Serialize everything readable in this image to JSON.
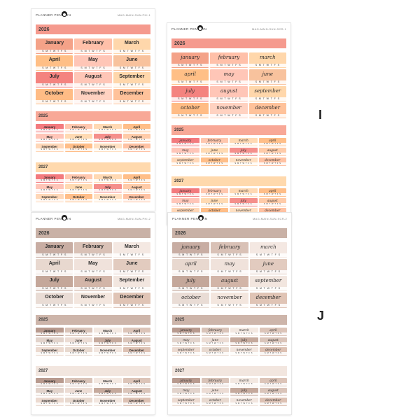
{
  "brand": "PLANNER PENGUIN",
  "weekdays": "S M T W T F S",
  "labels": {
    "first": "I",
    "second": "J"
  },
  "months_plain": [
    "January",
    "February",
    "March",
    "April",
    "May",
    "June",
    "July",
    "August",
    "September",
    "October",
    "November",
    "December"
  ],
  "months_script": [
    "january",
    "february",
    "march",
    "april",
    "may",
    "june",
    "july",
    "august",
    "september",
    "october",
    "november",
    "december"
  ],
  "sheets": [
    {
      "id": "top-left",
      "code": "MAG-MAIN-SUN-PKI-1",
      "style": "plain",
      "years": [
        "2026",
        "2025",
        "2027"
      ],
      "colors": {
        "bar": "#f59a8e",
        "bar2": "#f8a897",
        "bar3": "#ffd9ad",
        "big": [
          "#f4a288",
          "#ffc0a9",
          "#ffd7ab",
          "#ffbf86",
          "#ffc6b7",
          "#f8c29d",
          "#f4837f",
          "#ffc6b7",
          "#ffd7ab",
          "#ffbc85",
          "#ffd2c1",
          "#ffc29a"
        ],
        "small": [
          "#f37a7e",
          "#ffc7ae",
          "#ffd9b3",
          "#ffbe88",
          "#ffc5b8",
          "#ffdab2",
          "#f58f8b",
          "#ffcba8",
          "#ffd7b7",
          "#ffbe88",
          "#ffe0c2",
          "#ffc2a3"
        ]
      }
    },
    {
      "id": "top-right",
      "code": "MAG-MAIN-SUN-SCR-1",
      "style": "script",
      "years": [
        "2026",
        "2025",
        "2027"
      ],
      "colors": {
        "bar": "#f59a8e",
        "bar2": "#f8a897",
        "bar3": "#ffd9ad",
        "big": [
          "#f4a288",
          "#ffc0a9",
          "#ffd7ab",
          "#ffbf86",
          "#ffc6b7",
          "#f8c29d",
          "#f4837f",
          "#ffc6b7",
          "#ffd7ab",
          "#ffbc85",
          "#ffd2c1",
          "#ffc29a"
        ],
        "small": [
          "#f37a7e",
          "#ffc7ae",
          "#ffd9b3",
          "#ffbe88",
          "#ffc5b8",
          "#ffdab2",
          "#f58f8b",
          "#ffcba8",
          "#ffd7b7",
          "#ffbe88",
          "#ffe0c2",
          "#ffc2a3"
        ]
      }
    },
    {
      "id": "bottom-left",
      "code": "MAG-MAIN-SUN-PKI-2",
      "style": "plain",
      "years": [
        "2026",
        "2025",
        "2027"
      ],
      "colors": {
        "bar": "#c9b1a6",
        "bar2": "#cdb5aa",
        "bar3": "#f2e6df",
        "big": [
          "#c8ada3",
          "#d9c1b6",
          "#f4e8e2",
          "#e8d8cf",
          "#f0e2db",
          "#e2cbbf",
          "#c4a79a",
          "#d2b5a8",
          "#f2e6df",
          "#e9dcd5",
          "#f3e6de",
          "#e0c4b5"
        ],
        "small": [
          "#b89a8e",
          "#d9c3b8",
          "#f3e8e1",
          "#dcc4b8",
          "#e2d3cb",
          "#ecdcd4",
          "#c5a99c",
          "#dac4b9",
          "#ecdad0",
          "#e8d9cf",
          "#f2e6df",
          "#ddc1b3"
        ]
      }
    },
    {
      "id": "bottom-right",
      "code": "MAG-MAIN-SUN-SCR-2",
      "style": "script",
      "years": [
        "2026",
        "2025",
        "2027"
      ],
      "colors": {
        "bar": "#c9b1a6",
        "bar2": "#cdb5aa",
        "bar3": "#f2e6df",
        "big": [
          "#c8ada3",
          "#d9c1b6",
          "#f4e8e2",
          "#e8d8cf",
          "#f0e2db",
          "#e2cbbf",
          "#c4a79a",
          "#d2b5a8",
          "#f2e6df",
          "#e9dcd5",
          "#f3e6de",
          "#e0c4b5"
        ],
        "small": [
          "#b89a8e",
          "#d9c3b8",
          "#f3e8e1",
          "#dcc4b8",
          "#e2d3cb",
          "#ecdcd4",
          "#c5a99c",
          "#dac4b9",
          "#ecdad0",
          "#e8d9cf",
          "#f2e6df",
          "#ddc1b3"
        ]
      }
    }
  ]
}
